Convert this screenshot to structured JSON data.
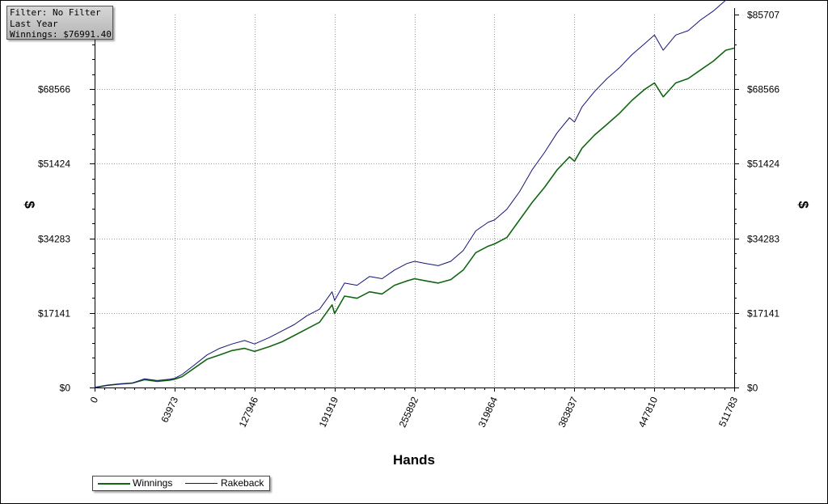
{
  "info_box": {
    "filter": "Filter: No Filter",
    "period": "Last Year",
    "winnings": "Winnings: $76991.40"
  },
  "colors": {
    "winnings": "#116611",
    "rakeback": "#14147a",
    "grid": "#9a9a9a",
    "axis": "#000000"
  },
  "chart_data": {
    "type": "line",
    "xlabel": "Hands",
    "ylabel": "$",
    "xlim": [
      0,
      511783
    ],
    "ylim": [
      0,
      85707
    ],
    "x_ticks": [
      0,
      63973,
      127946,
      191919,
      255892,
      319864,
      383837,
      447810,
      511783
    ],
    "x_tick_labels": [
      "0",
      "63973",
      "127946",
      "191919",
      "255892",
      "319864",
      "383837",
      "447810",
      "511783"
    ],
    "y_ticks": [
      0,
      17141,
      34283,
      51424,
      68566,
      85707
    ],
    "y_tick_labels": [
      "$0",
      "$17141",
      "$34283",
      "$51424",
      "$68566",
      "$85707"
    ],
    "grid": true,
    "legend_position": "bottom-left",
    "x": [
      0,
      10000,
      20000,
      30000,
      40000,
      50000,
      60000,
      64000,
      70000,
      80000,
      90000,
      100000,
      110000,
      120000,
      128000,
      140000,
      150000,
      160000,
      170000,
      180000,
      190000,
      192000,
      200000,
      210000,
      220000,
      230000,
      240000,
      250000,
      256000,
      265000,
      275000,
      285000,
      295000,
      305000,
      315000,
      320000,
      330000,
      340000,
      350000,
      360000,
      370000,
      380000,
      384000,
      390000,
      400000,
      410000,
      420000,
      430000,
      440000,
      448000,
      455000,
      465000,
      475000,
      485000,
      495000,
      505000,
      511783
    ],
    "series": [
      {
        "name": "Winnings",
        "values": [
          0,
          500,
          800,
          1000,
          1800,
          1400,
          1700,
          1900,
          2500,
          4500,
          6500,
          7500,
          8500,
          9000,
          8300,
          9400,
          10500,
          12000,
          13500,
          15000,
          19000,
          17000,
          21000,
          20500,
          22000,
          21500,
          23500,
          24500,
          25000,
          24500,
          24000,
          24800,
          27000,
          31000,
          32500,
          33000,
          34500,
          38500,
          42500,
          46000,
          50000,
          53000,
          52000,
          55000,
          58000,
          60500,
          63000,
          66000,
          68500,
          70000,
          66800,
          70000,
          71000,
          73000,
          75000,
          77500,
          78000
        ]
      },
      {
        "name": "Rakeback",
        "values": [
          0,
          500,
          800,
          1000,
          2000,
          1600,
          1900,
          2100,
          3000,
          5200,
          7500,
          9000,
          10000,
          10800,
          10000,
          11500,
          13000,
          14500,
          16500,
          18000,
          22000,
          20000,
          24000,
          23500,
          25500,
          25000,
          27000,
          28500,
          29000,
          28500,
          28000,
          29000,
          31500,
          36000,
          38000,
          38500,
          41000,
          45000,
          50000,
          54000,
          58500,
          62000,
          61000,
          64500,
          68000,
          71000,
          73500,
          76500,
          79000,
          81000,
          77500,
          81000,
          82000,
          84500,
          86500,
          89000,
          89500
        ]
      }
    ]
  }
}
